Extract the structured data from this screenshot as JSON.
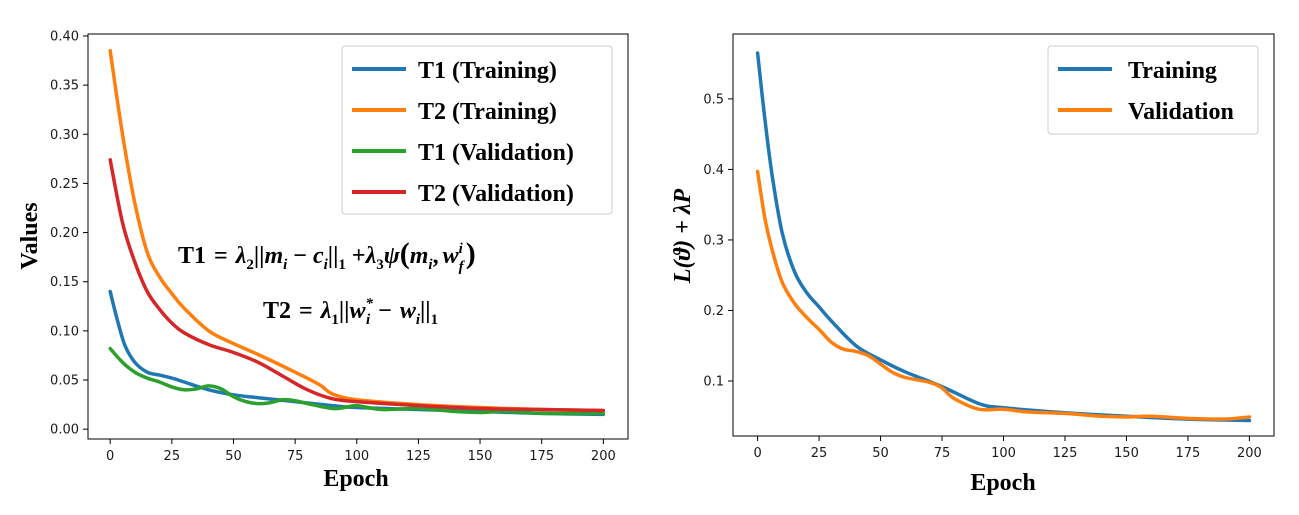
{
  "chart_data": [
    {
      "type": "line",
      "title": "",
      "xlabel": "Epoch",
      "ylabel": "Values",
      "xlim": [
        -9,
        210
      ],
      "ylim": [
        -0.01,
        0.402
      ],
      "xticks": [
        0,
        25,
        50,
        75,
        100,
        125,
        150,
        175,
        200
      ],
      "yticks": [
        0.0,
        0.05,
        0.1,
        0.15,
        0.2,
        0.25,
        0.3,
        0.35,
        0.4
      ],
      "legend_position": "top-right",
      "annotations": [
        "T1 = λ₂||mᵢ − cᵢ||₁ + λ₃ψ(mᵢ, w_f^i)",
        "T2 = λ₁||wᵢ* − wᵢ||₁"
      ],
      "series": [
        {
          "name": "T1 (Training)",
          "color": "#1f77b4",
          "x": [
            0,
            3,
            6,
            10,
            15,
            20,
            25,
            30,
            40,
            50,
            60,
            75,
            90,
            100,
            125,
            150,
            175,
            200
          ],
          "y": [
            0.14,
            0.11,
            0.085,
            0.068,
            0.058,
            0.055,
            0.052,
            0.048,
            0.04,
            0.035,
            0.032,
            0.028,
            0.024,
            0.022,
            0.02,
            0.018,
            0.016,
            0.015
          ]
        },
        {
          "name": "T2 (Training)",
          "color": "#ff7f0e",
          "x": [
            0,
            5,
            10,
            15,
            20,
            25,
            30,
            40,
            50,
            60,
            75,
            85,
            90,
            100,
            125,
            150,
            175,
            200
          ],
          "y": [
            0.385,
            0.3,
            0.23,
            0.18,
            0.155,
            0.138,
            0.123,
            0.1,
            0.087,
            0.076,
            0.058,
            0.045,
            0.036,
            0.03,
            0.025,
            0.022,
            0.02,
            0.019
          ]
        },
        {
          "name": "T1 (Validation)",
          "color": "#2ca02c",
          "x": [
            0,
            5,
            10,
            15,
            20,
            25,
            30,
            35,
            40,
            45,
            50,
            55,
            60,
            65,
            70,
            75,
            80,
            90,
            95,
            100,
            110,
            125,
            140,
            150,
            160,
            175,
            190,
            200
          ],
          "y": [
            0.082,
            0.068,
            0.058,
            0.052,
            0.048,
            0.043,
            0.04,
            0.041,
            0.044,
            0.041,
            0.033,
            0.028,
            0.026,
            0.027,
            0.03,
            0.029,
            0.026,
            0.021,
            0.022,
            0.024,
            0.02,
            0.021,
            0.018,
            0.017,
            0.018,
            0.016,
            0.016,
            0.016
          ]
        },
        {
          "name": "T2 (Validation)",
          "color": "#d62728",
          "x": [
            0,
            5,
            10,
            15,
            20,
            25,
            30,
            40,
            50,
            60,
            70,
            80,
            90,
            100,
            125,
            150,
            175,
            200
          ],
          "y": [
            0.274,
            0.21,
            0.17,
            0.14,
            0.122,
            0.108,
            0.098,
            0.086,
            0.078,
            0.068,
            0.054,
            0.04,
            0.031,
            0.028,
            0.024,
            0.021,
            0.02,
            0.019
          ]
        }
      ]
    },
    {
      "type": "line",
      "title": "",
      "xlabel": "Epoch",
      "ylabel": "L(ϑ) + λP",
      "xlim": [
        -10,
        210
      ],
      "ylim": [
        0.022,
        0.592
      ],
      "xticks": [
        0,
        25,
        50,
        75,
        100,
        125,
        150,
        175,
        200
      ],
      "yticks": [
        0.1,
        0.2,
        0.3,
        0.4,
        0.5
      ],
      "legend_position": "top-right",
      "series": [
        {
          "name": "Training",
          "color": "#1f77b4",
          "x": [
            0,
            3,
            6,
            10,
            15,
            20,
            25,
            30,
            40,
            50,
            60,
            75,
            90,
            100,
            125,
            150,
            175,
            200
          ],
          "y": [
            0.565,
            0.47,
            0.39,
            0.31,
            0.255,
            0.225,
            0.205,
            0.185,
            0.15,
            0.13,
            0.113,
            0.092,
            0.068,
            0.062,
            0.055,
            0.05,
            0.046,
            0.044
          ]
        },
        {
          "name": "Validation",
          "color": "#ff7f0e",
          "x": [
            0,
            3,
            6,
            10,
            15,
            20,
            25,
            30,
            35,
            40,
            45,
            50,
            55,
            60,
            70,
            75,
            80,
            90,
            100,
            110,
            125,
            140,
            150,
            160,
            175,
            190,
            200
          ],
          "y": [
            0.397,
            0.33,
            0.285,
            0.24,
            0.21,
            0.19,
            0.173,
            0.155,
            0.145,
            0.142,
            0.136,
            0.124,
            0.112,
            0.105,
            0.098,
            0.09,
            0.075,
            0.06,
            0.06,
            0.056,
            0.054,
            0.05,
            0.049,
            0.05,
            0.047,
            0.046,
            0.049
          ]
        }
      ]
    }
  ]
}
